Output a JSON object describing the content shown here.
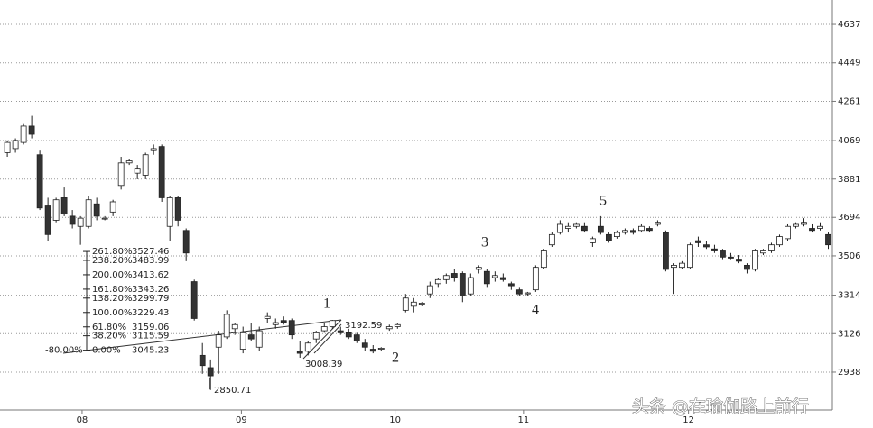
{
  "chart_data": {
    "type": "candlestick",
    "open": [
      4010,
      4030,
      4060,
      4140,
      4000,
      3750,
      3680,
      3790,
      3700,
      3650,
      3650,
      3760,
      3690,
      3720,
      3850,
      3960,
      3910,
      3900,
      4020,
      4040,
      3650,
      3790,
      3630,
      3380,
      3020,
      2960,
      3060,
      3110,
      3150,
      3050,
      3120,
      3060,
      3200,
      3170,
      3190,
      3190,
      3040,
      3040,
      3100,
      3140,
      3160,
      3140,
      3130,
      3120,
      3080,
      3050,
      3050,
      3150,
      3160,
      3240,
      3260,
      3270,
      3320,
      3370,
      3390,
      3420,
      3420,
      3320,
      3440,
      3430,
      3400,
      3400,
      3370,
      3340,
      3320,
      3340,
      3450,
      3560,
      3620,
      3640,
      3650,
      3650,
      3570,
      3650,
      3610,
      3600,
      3620,
      3630,
      3630,
      3640,
      3660,
      3620,
      3450,
      3450,
      3450,
      3580,
      3560,
      3540,
      3530,
      3500,
      3490,
      3460,
      3440,
      3520,
      3530,
      3560,
      3590,
      3650,
      3660,
      3640,
      3640,
      3610
    ],
    "high": [
      4070,
      4080,
      4150,
      4190,
      4020,
      3790,
      3790,
      3840,
      3730,
      3700,
      3800,
      3790,
      3700,
      3780,
      3990,
      3980,
      3950,
      4010,
      4050,
      4050,
      3800,
      3800,
      3640,
      3390,
      3080,
      3000,
      3140,
      3240,
      3180,
      3160,
      3180,
      3160,
      3230,
      3200,
      3210,
      3200,
      3090,
      3090,
      3140,
      3180,
      3193,
      3160,
      3150,
      3130,
      3100,
      3070,
      3060,
      3170,
      3180,
      3320,
      3300,
      3280,
      3380,
      3400,
      3420,
      3440,
      3430,
      3420,
      3460,
      3440,
      3430,
      3420,
      3380,
      3350,
      3330,
      3460,
      3540,
      3620,
      3680,
      3670,
      3670,
      3670,
      3600,
      3700,
      3620,
      3630,
      3640,
      3640,
      3660,
      3650,
      3680,
      3630,
      3470,
      3480,
      3570,
      3600,
      3580,
      3560,
      3540,
      3520,
      3510,
      3470,
      3540,
      3540,
      3570,
      3610,
      3660,
      3670,
      3690,
      3660,
      3670,
      3620
    ],
    "low": [
      3990,
      4010,
      4050,
      4080,
      3730,
      3580,
      3670,
      3700,
      3640,
      3560,
      3640,
      3680,
      3680,
      3700,
      3830,
      3950,
      3880,
      3880,
      4000,
      3770,
      3580,
      3650,
      3480,
      3190,
      2930,
      2850.71,
      2930,
      3100,
      3120,
      3030,
      3090,
      3040,
      3180,
      3150,
      3170,
      3100,
      3008.39,
      3020,
      3080,
      3130,
      3150,
      3120,
      3100,
      3080,
      3040,
      3030,
      3040,
      3140,
      3150,
      3230,
      3230,
      3260,
      3300,
      3350,
      3370,
      3380,
      3280,
      3310,
      3420,
      3350,
      3380,
      3380,
      3340,
      3310,
      3310,
      3330,
      3440,
      3550,
      3610,
      3620,
      3640,
      3620,
      3550,
      3610,
      3570,
      3590,
      3610,
      3610,
      3620,
      3620,
      3650,
      3430,
      3320,
      3440,
      3440,
      3550,
      3540,
      3520,
      3490,
      3490,
      3470,
      3420,
      3430,
      3510,
      3520,
      3550,
      3580,
      3640,
      3650,
      3620,
      3630,
      3540
    ],
    "close": [
      4060,
      4070,
      4140,
      4100,
      3740,
      3610,
      3780,
      3710,
      3660,
      3690,
      3780,
      3700,
      3690,
      3770,
      3960,
      3970,
      3930,
      4000,
      4030,
      3790,
      3790,
      3680,
      3520,
      3200,
      2970,
      2920,
      3120,
      3220,
      3170,
      3130,
      3100,
      3140,
      3210,
      3180,
      3180,
      3120,
      3030,
      3080,
      3130,
      3160,
      3190,
      3130,
      3110,
      3090,
      3060,
      3040,
      3055,
      3160,
      3170,
      3300,
      3280,
      3275,
      3360,
      3390,
      3410,
      3400,
      3310,
      3400,
      3450,
      3370,
      3410,
      3390,
      3360,
      3320,
      3325,
      3450,
      3530,
      3610,
      3660,
      3650,
      3660,
      3630,
      3590,
      3620,
      3580,
      3620,
      3630,
      3620,
      3650,
      3630,
      3670,
      3440,
      3460,
      3470,
      3560,
      3570,
      3550,
      3530,
      3500,
      3495,
      3480,
      3440,
      3530,
      3530,
      3560,
      3600,
      3650,
      3660,
      3670,
      3630,
      3650,
      3560
    ],
    "up_color": "#ffffff",
    "down_color": "#333333",
    "xlim": [
      -0.9,
      101.5
    ],
    "xticks": [
      {
        "value": 9.2,
        "label": "08"
      },
      {
        "value": 28.8,
        "label": "09"
      },
      {
        "value": 47.7,
        "label": "10"
      },
      {
        "value": 63.5,
        "label": "11"
      },
      {
        "value": 83.8,
        "label": "12"
      }
    ],
    "ylim": [
      2753,
      4756
    ],
    "yticks": [
      2938,
      3126,
      3314,
      3506,
      3694,
      3881,
      4069,
      4261,
      4449,
      4637
    ],
    "grid": true,
    "fib": {
      "levels": [
        {
          "ratio": "261.80%",
          "price": 3527.46
        },
        {
          "ratio": "238.20%",
          "price": 3483.99
        },
        {
          "ratio": "200.00%",
          "price": 3413.62
        },
        {
          "ratio": "161.80%",
          "price": 3343.26
        },
        {
          "ratio": "138.20%",
          "price": 3299.79
        },
        {
          "ratio": "100.00%",
          "price": 3229.43
        },
        {
          "ratio": "61.80%",
          "price": 3159.06
        },
        {
          "ratio": "38.20%",
          "price": 3115.59
        },
        {
          "ratio": "0.00%",
          "price": 3045.23
        }
      ],
      "extra": "-80.00%"
    },
    "wave_labels": [
      "1",
      "2",
      "3",
      "4",
      "5"
    ],
    "price_notes": [
      3192.59,
      3008.39,
      2850.71
    ],
    "watermark": "头条 @在瑜伽路上前行"
  }
}
